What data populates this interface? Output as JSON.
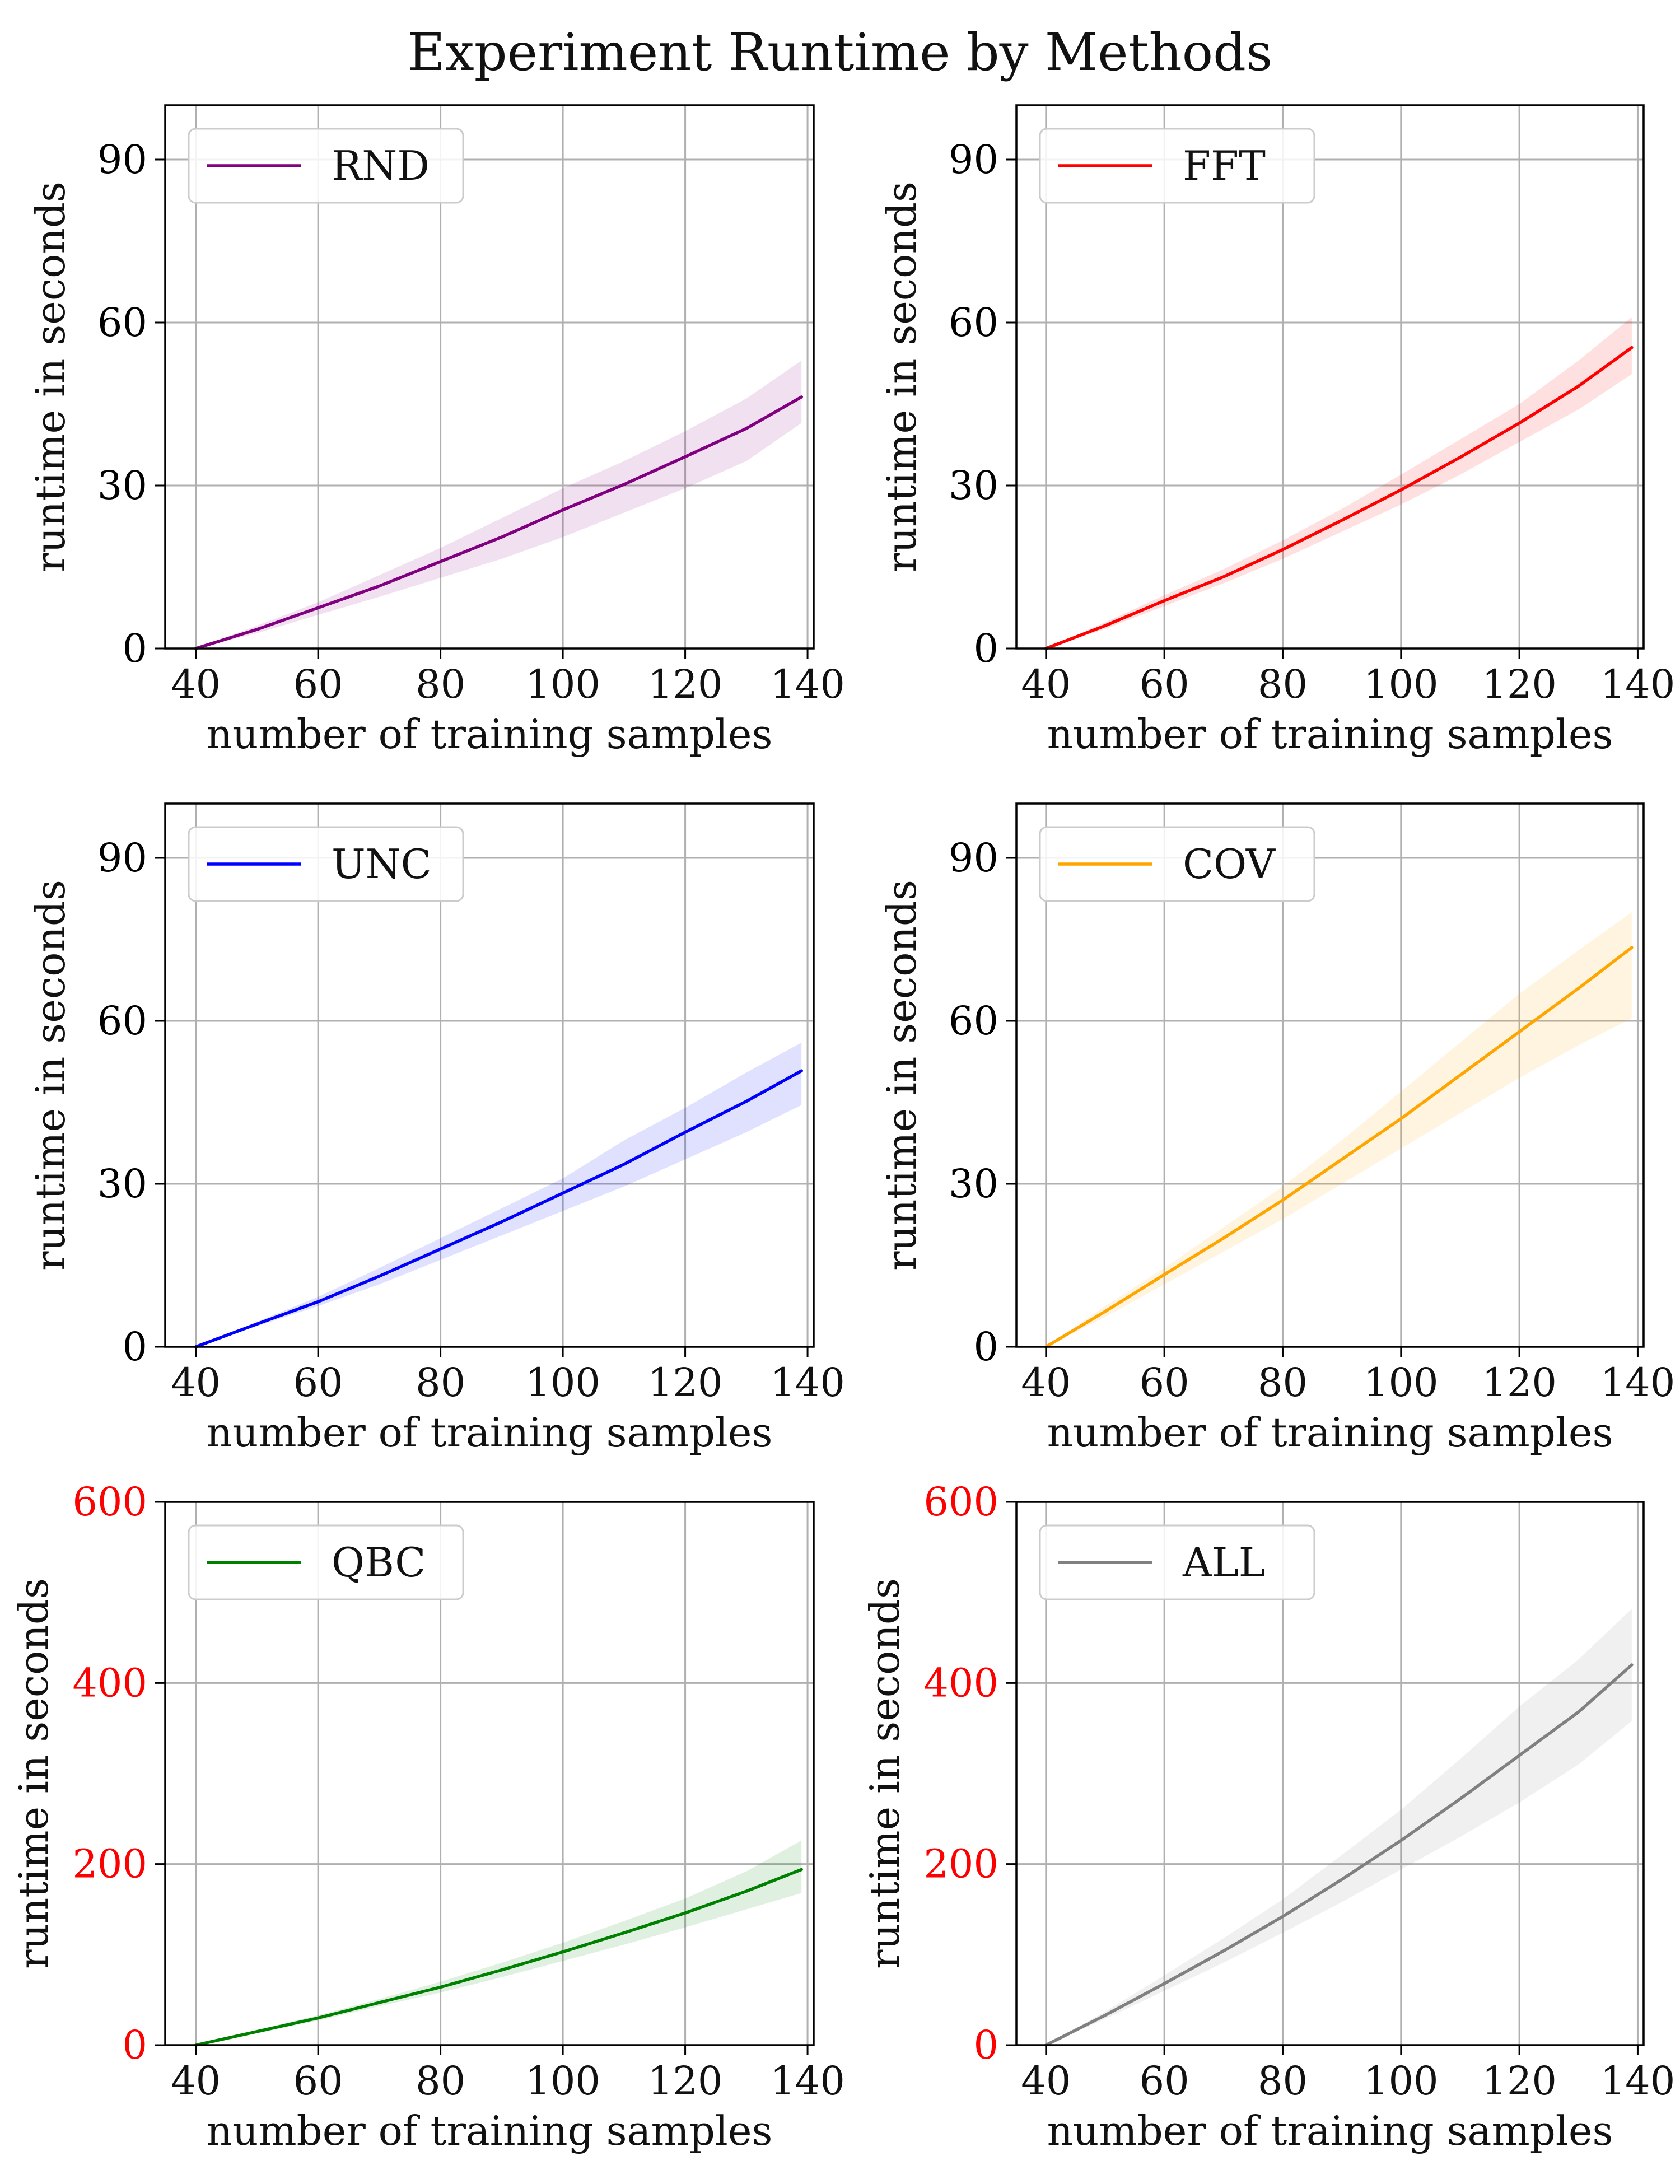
{
  "title": "Experiment Runtime by Methods",
  "colors": {
    "grid": "#b0b0b0",
    "axis": "#000000",
    "legend_border": "#cccccc",
    "red_tick": "#ff0000"
  },
  "chart_data": [
    {
      "type": "line",
      "title": "",
      "xlabel": "number of training samples",
      "ylabel": "runtime in seconds",
      "xlim": [
        35,
        141
      ],
      "ylim": [
        0,
        100
      ],
      "xticks": [
        40,
        60,
        80,
        100,
        120,
        140
      ],
      "yticks": [
        0,
        30,
        60,
        90
      ],
      "ytick_color": "#000000",
      "legend": "upper-left",
      "grid": true,
      "series": [
        {
          "name": "RND",
          "color": "#800080",
          "x": [
            40,
            50,
            60,
            70,
            80,
            90,
            100,
            110,
            120,
            130,
            139
          ],
          "values": [
            0,
            3.5,
            7.5,
            11.5,
            16,
            20.5,
            25.5,
            30.2,
            35.3,
            40.5,
            46.3
          ],
          "lower": [
            0,
            2.8,
            6.2,
            9.5,
            13,
            16.5,
            20.5,
            25,
            29.5,
            34.5,
            41.5
          ],
          "upper": [
            0,
            4.2,
            8.5,
            13.5,
            18.5,
            24,
            29.5,
            34.5,
            40,
            46,
            53
          ]
        }
      ]
    },
    {
      "type": "line",
      "title": "",
      "xlabel": "number of training samples",
      "ylabel": "runtime in seconds",
      "xlim": [
        35,
        141
      ],
      "ylim": [
        0,
        100
      ],
      "xticks": [
        40,
        60,
        80,
        100,
        120,
        140
      ],
      "yticks": [
        0,
        30,
        60,
        90
      ],
      "ytick_color": "#000000",
      "legend": "upper-left",
      "grid": true,
      "series": [
        {
          "name": "FFT",
          "color": "#ff0000",
          "x": [
            40,
            50,
            60,
            70,
            80,
            90,
            100,
            110,
            120,
            130,
            139
          ],
          "values": [
            0,
            4.2,
            8.8,
            13.2,
            18.2,
            23.6,
            29.2,
            35.2,
            41.5,
            48.3,
            55.4
          ],
          "lower": [
            0,
            3.6,
            7.8,
            12,
            16.5,
            21.5,
            26.5,
            32,
            38,
            44,
            50.5
          ],
          "upper": [
            0,
            4.8,
            9.8,
            14.6,
            19.9,
            25.7,
            32,
            38.5,
            45,
            53,
            61
          ]
        }
      ]
    },
    {
      "type": "line",
      "title": "",
      "xlabel": "number of training samples",
      "ylabel": "runtime in seconds",
      "xlim": [
        35,
        141
      ],
      "ylim": [
        0,
        100
      ],
      "xticks": [
        40,
        60,
        80,
        100,
        120,
        140
      ],
      "yticks": [
        0,
        30,
        60,
        90
      ],
      "ytick_color": "#000000",
      "legend": "upper-left",
      "grid": true,
      "series": [
        {
          "name": "UNC",
          "color": "#0000ff",
          "x": [
            40,
            50,
            60,
            70,
            80,
            90,
            100,
            110,
            120,
            130,
            139
          ],
          "values": [
            0,
            4.2,
            8.3,
            13,
            18,
            23,
            28.3,
            33.6,
            39.5,
            45.2,
            50.8
          ],
          "lower": [
            0,
            3.8,
            7.5,
            11.5,
            16,
            20.5,
            25,
            29.5,
            34.5,
            39.5,
            44.5
          ],
          "upper": [
            0,
            4.6,
            9.2,
            14.5,
            20,
            25.5,
            31,
            38,
            44,
            50.5,
            56
          ]
        }
      ]
    },
    {
      "type": "line",
      "title": "",
      "xlabel": "number of training samples",
      "ylabel": "runtime in seconds",
      "xlim": [
        35,
        141
      ],
      "ylim": [
        0,
        100
      ],
      "xticks": [
        40,
        60,
        80,
        100,
        120,
        140
      ],
      "yticks": [
        0,
        30,
        60,
        90
      ],
      "ytick_color": "#000000",
      "legend": "upper-left",
      "grid": true,
      "series": [
        {
          "name": "COV",
          "color": "#ffa500",
          "x": [
            40,
            50,
            60,
            70,
            80,
            90,
            100,
            110,
            120,
            130,
            139
          ],
          "values": [
            0,
            6.5,
            13.3,
            20,
            27,
            34.5,
            42,
            50,
            58,
            66,
            73.5
          ],
          "lower": [
            0,
            5.5,
            11.5,
            17.5,
            23.5,
            30,
            36.5,
            43,
            49.5,
            55.5,
            60.5
          ],
          "upper": [
            0,
            7.5,
            14.5,
            22,
            29.5,
            38,
            47,
            56,
            65,
            73,
            80
          ]
        }
      ]
    },
    {
      "type": "line",
      "title": "",
      "xlabel": "number of training samples",
      "ylabel": "runtime in seconds",
      "xlim": [
        35,
        141
      ],
      "ylim": [
        0,
        600
      ],
      "xticks": [
        40,
        60,
        80,
        100,
        120,
        140
      ],
      "yticks": [
        0,
        200,
        400,
        600
      ],
      "ytick_color": "#ff0000",
      "legend": "upper-left",
      "grid": true,
      "series": [
        {
          "name": "QBC",
          "color": "#008000",
          "x": [
            40,
            50,
            60,
            70,
            80,
            90,
            100,
            110,
            120,
            130,
            139
          ],
          "values": [
            0,
            15,
            30,
            47,
            64,
            83,
            103,
            124,
            146,
            170,
            194
          ],
          "lower": [
            0,
            13,
            27,
            43,
            58,
            75,
            93,
            111,
            130,
            150,
            168
          ],
          "upper": [
            0,
            17,
            33,
            51,
            70,
            91,
            113,
            137,
            162,
            192,
            226
          ]
        }
      ]
    },
    {
      "type": "line",
      "title": "",
      "xlabel": "number of training samples",
      "ylabel": "runtime in seconds",
      "xlim": [
        35,
        141
      ],
      "ylim": [
        0,
        600
      ],
      "xticks": [
        40,
        60,
        80,
        100,
        120,
        140
      ],
      "yticks": [
        0,
        200,
        400,
        600
      ],
      "ytick_color": "#ff0000",
      "legend": "upper-left",
      "grid": true,
      "series": [
        {
          "name": "ALL",
          "color": "#808080",
          "x": [
            40,
            50,
            60,
            70,
            80,
            90,
            100,
            110,
            120,
            130,
            139
          ],
          "values": [
            0,
            33,
            68,
            104,
            142,
            183,
            226,
            272,
            320,
            368,
            420
          ],
          "lower": [
            0,
            29,
            60,
            91,
            124,
            158,
            194,
            230,
            268,
            310,
            358
          ],
          "upper": [
            0,
            37,
            77,
            118,
            161,
            210,
            260,
            316,
            374,
            426,
            482
          ]
        }
      ]
    }
  ]
}
